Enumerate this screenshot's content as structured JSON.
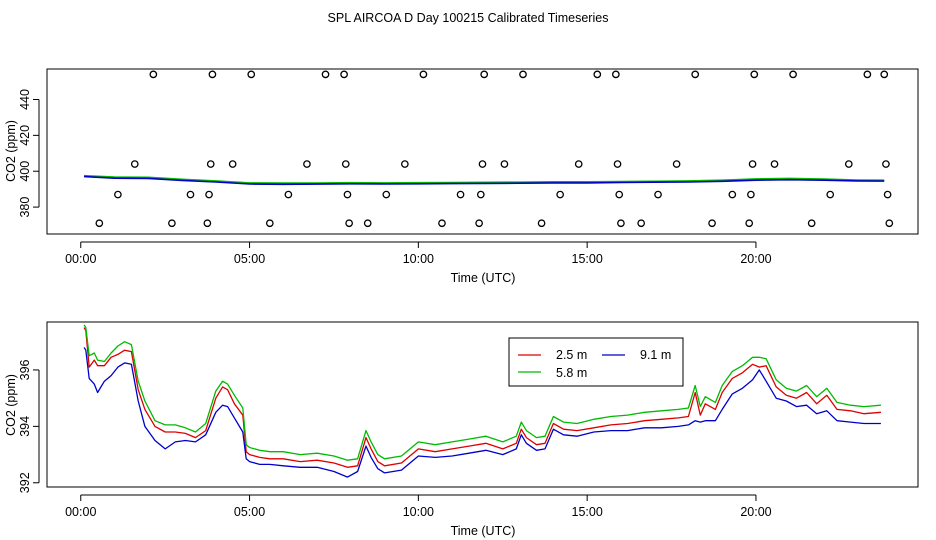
{
  "title": "SPL AIRCOA D  Day 100215  Calibrated Timeseries",
  "colors": {
    "red": "#dd0000",
    "green": "#00bb00",
    "blue": "#0000cc",
    "points": "#000000"
  },
  "chart_data": [
    {
      "type": "scatter",
      "xlabel": "Time (UTC)",
      "ylabel": "CO2 (ppm)",
      "xlim": [
        -1.0,
        24.8
      ],
      "ylim": [
        365,
        457
      ],
      "x_ticks": [
        0,
        5,
        10,
        15,
        20
      ],
      "x_tick_labels": [
        "00:00",
        "05:00",
        "10:00",
        "15:00",
        "20:00"
      ],
      "y_ticks": [
        380,
        400,
        420,
        440
      ],
      "y_tick_labels": [
        "380",
        "400",
        "420",
        "440"
      ],
      "points": [
        {
          "x": 0.55,
          "y": 371
        },
        {
          "x": 1.1,
          "y": 387
        },
        {
          "x": 1.6,
          "y": 404
        },
        {
          "x": 2.15,
          "y": 454
        },
        {
          "x": 2.7,
          "y": 371
        },
        {
          "x": 3.25,
          "y": 387
        },
        {
          "x": 3.75,
          "y": 371
        },
        {
          "x": 3.8,
          "y": 387
        },
        {
          "x": 3.85,
          "y": 404
        },
        {
          "x": 3.9,
          "y": 454
        },
        {
          "x": 4.5,
          "y": 404
        },
        {
          "x": 5.05,
          "y": 454
        },
        {
          "x": 5.6,
          "y": 371
        },
        {
          "x": 6.15,
          "y": 387
        },
        {
          "x": 6.7,
          "y": 404
        },
        {
          "x": 7.25,
          "y": 454
        },
        {
          "x": 7.8,
          "y": 454
        },
        {
          "x": 7.85,
          "y": 404
        },
        {
          "x": 7.9,
          "y": 387
        },
        {
          "x": 7.95,
          "y": 371
        },
        {
          "x": 8.5,
          "y": 371
        },
        {
          "x": 9.05,
          "y": 387
        },
        {
          "x": 9.6,
          "y": 404
        },
        {
          "x": 10.15,
          "y": 454
        },
        {
          "x": 10.7,
          "y": 371
        },
        {
          "x": 11.25,
          "y": 387
        },
        {
          "x": 11.8,
          "y": 371
        },
        {
          "x": 11.85,
          "y": 387
        },
        {
          "x": 11.9,
          "y": 404
        },
        {
          "x": 11.95,
          "y": 454
        },
        {
          "x": 12.55,
          "y": 404
        },
        {
          "x": 13.1,
          "y": 454
        },
        {
          "x": 13.65,
          "y": 371
        },
        {
          "x": 14.2,
          "y": 387
        },
        {
          "x": 14.75,
          "y": 404
        },
        {
          "x": 15.3,
          "y": 454
        },
        {
          "x": 15.85,
          "y": 454
        },
        {
          "x": 15.9,
          "y": 404
        },
        {
          "x": 15.95,
          "y": 387
        },
        {
          "x": 16.0,
          "y": 371
        },
        {
          "x": 16.6,
          "y": 371
        },
        {
          "x": 17.1,
          "y": 387
        },
        {
          "x": 17.65,
          "y": 404
        },
        {
          "x": 18.2,
          "y": 454
        },
        {
          "x": 18.7,
          "y": 371
        },
        {
          "x": 19.3,
          "y": 387
        },
        {
          "x": 19.8,
          "y": 371
        },
        {
          "x": 19.85,
          "y": 387
        },
        {
          "x": 19.9,
          "y": 404
        },
        {
          "x": 19.95,
          "y": 454
        },
        {
          "x": 20.55,
          "y": 404
        },
        {
          "x": 21.1,
          "y": 454
        },
        {
          "x": 21.65,
          "y": 371
        },
        {
          "x": 22.2,
          "y": 387
        },
        {
          "x": 22.75,
          "y": 404
        },
        {
          "x": 23.3,
          "y": 454
        },
        {
          "x": 23.8,
          "y": 454
        },
        {
          "x": 23.85,
          "y": 404
        },
        {
          "x": 23.9,
          "y": 387
        },
        {
          "x": 23.95,
          "y": 371
        }
      ],
      "series": [
        {
          "color": "red",
          "x": [
            0.1,
            1,
            2,
            3,
            4,
            5,
            6,
            7,
            8,
            9,
            10,
            11,
            12,
            13,
            14,
            15,
            16,
            17,
            18,
            19,
            20,
            21,
            22,
            23,
            23.8
          ],
          "values": [
            397.3,
            396.4,
            396.3,
            395.2,
            394.3,
            393.3,
            393.1,
            393.2,
            393.4,
            393.2,
            393.4,
            393.4,
            393.6,
            393.7,
            393.8,
            393.8,
            394.0,
            394.2,
            394.3,
            394.7,
            395.3,
            395.6,
            395.3,
            394.9,
            394.8
          ]
        },
        {
          "color": "green",
          "x": [
            0.1,
            1,
            2,
            3,
            4,
            5,
            6,
            7,
            8,
            9,
            10,
            11,
            12,
            13,
            14,
            15,
            16,
            17,
            18,
            19,
            20,
            21,
            22,
            23,
            23.8
          ],
          "values": [
            397.5,
            396.7,
            396.6,
            395.5,
            394.6,
            393.5,
            393.4,
            393.4,
            393.6,
            393.5,
            393.6,
            393.7,
            393.8,
            393.9,
            394.1,
            394.1,
            394.3,
            394.4,
            394.6,
            395.0,
            395.7,
            396.0,
            395.6,
            395.1,
            395.0
          ]
        },
        {
          "color": "blue",
          "x": [
            0.1,
            1,
            2,
            3,
            4,
            5,
            6,
            7,
            8,
            9,
            10,
            11,
            12,
            13,
            14,
            15,
            16,
            17,
            18,
            19,
            20,
            21,
            22,
            23,
            23.8
          ],
          "values": [
            397.0,
            396.1,
            396.0,
            394.9,
            394.0,
            392.9,
            392.7,
            392.8,
            393.0,
            392.9,
            393.0,
            393.1,
            393.2,
            393.3,
            393.5,
            393.5,
            393.7,
            393.9,
            394.0,
            394.4,
            395.0,
            395.3,
            395.0,
            394.6,
            394.5
          ]
        }
      ]
    },
    {
      "type": "line",
      "xlabel": "Time (UTC)",
      "ylabel": "CO2 (ppm)",
      "xlim": [
        -1.0,
        24.8
      ],
      "ylim": [
        391.85,
        397.7
      ],
      "x_ticks": [
        0,
        5,
        10,
        15,
        20
      ],
      "x_tick_labels": [
        "00:00",
        "05:00",
        "10:00",
        "15:00",
        "20:00"
      ],
      "y_ticks": [
        392,
        394,
        396
      ],
      "y_tick_labels": [
        "392",
        "394",
        "396"
      ],
      "legend_position": "top-right",
      "series": [
        {
          "name": "2.5 m",
          "color": "red",
          "x": [
            0.1,
            0.15,
            0.25,
            0.4,
            0.5,
            0.7,
            0.9,
            1.1,
            1.3,
            1.5,
            1.7,
            1.9,
            2.2,
            2.5,
            2.8,
            3.1,
            3.4,
            3.7,
            4.0,
            4.2,
            4.35,
            4.55,
            4.8,
            4.9,
            5.0,
            5.3,
            5.6,
            6.0,
            6.5,
            7.0,
            7.5,
            7.9,
            8.2,
            8.45,
            8.6,
            8.8,
            9.0,
            9.5,
            10.0,
            10.5,
            11.0,
            11.5,
            12.0,
            12.5,
            12.9,
            13.05,
            13.2,
            13.5,
            13.75,
            14.0,
            14.3,
            14.7,
            15.2,
            15.7,
            16.2,
            16.7,
            17.2,
            17.7,
            18.0,
            18.2,
            18.35,
            18.5,
            18.8,
            19.0,
            19.3,
            19.6,
            19.9,
            20.1,
            20.3,
            20.6,
            20.9,
            21.2,
            21.5,
            21.8,
            22.1,
            22.4,
            22.8,
            23.2,
            23.7
          ],
          "values": [
            397.5,
            397.4,
            396.1,
            396.35,
            396.15,
            396.15,
            396.45,
            396.55,
            396.7,
            396.65,
            395.3,
            394.6,
            394.0,
            393.8,
            393.8,
            393.75,
            393.6,
            393.85,
            395.0,
            395.4,
            395.3,
            394.8,
            394.4,
            393.1,
            393.0,
            392.9,
            392.85,
            392.85,
            392.75,
            392.8,
            392.7,
            392.55,
            392.6,
            393.6,
            393.2,
            392.75,
            392.6,
            392.7,
            393.2,
            393.1,
            393.2,
            393.3,
            393.4,
            393.2,
            393.4,
            393.9,
            393.6,
            393.35,
            393.4,
            394.1,
            393.9,
            393.85,
            393.95,
            394.05,
            394.1,
            394.2,
            394.25,
            394.3,
            394.35,
            395.2,
            394.4,
            394.8,
            394.6,
            395.2,
            395.7,
            395.9,
            396.2,
            396.1,
            396.15,
            395.4,
            395.1,
            395.0,
            395.2,
            394.8,
            395.1,
            394.6,
            394.55,
            394.45,
            394.5
          ]
        },
        {
          "name": "5.8 m",
          "color": "green",
          "x": [
            0.1,
            0.15,
            0.25,
            0.4,
            0.5,
            0.7,
            0.9,
            1.1,
            1.3,
            1.5,
            1.7,
            1.9,
            2.2,
            2.5,
            2.8,
            3.1,
            3.4,
            3.7,
            4.0,
            4.2,
            4.35,
            4.55,
            4.8,
            4.9,
            5.0,
            5.3,
            5.6,
            6.0,
            6.5,
            7.0,
            7.5,
            7.9,
            8.2,
            8.45,
            8.6,
            8.8,
            9.0,
            9.5,
            10.0,
            10.5,
            11.0,
            11.5,
            12.0,
            12.5,
            12.9,
            13.05,
            13.2,
            13.5,
            13.75,
            14.0,
            14.3,
            14.7,
            15.2,
            15.7,
            16.2,
            16.7,
            17.2,
            17.7,
            18.0,
            18.2,
            18.35,
            18.5,
            18.8,
            19.0,
            19.3,
            19.6,
            19.9,
            20.1,
            20.3,
            20.6,
            20.9,
            21.2,
            21.5,
            21.8,
            22.1,
            22.4,
            22.8,
            23.2,
            23.7
          ],
          "values": [
            397.6,
            397.5,
            396.5,
            396.6,
            396.35,
            396.3,
            396.6,
            396.85,
            397.0,
            396.9,
            395.6,
            394.9,
            394.2,
            394.05,
            394.05,
            393.95,
            393.8,
            394.1,
            395.25,
            395.6,
            395.5,
            395.1,
            394.65,
            393.35,
            393.25,
            393.15,
            393.1,
            393.1,
            393.0,
            393.05,
            392.95,
            392.8,
            392.85,
            393.85,
            393.45,
            393.0,
            392.85,
            392.95,
            393.45,
            393.35,
            393.45,
            393.55,
            393.65,
            393.45,
            393.65,
            394.15,
            393.85,
            393.6,
            393.65,
            394.35,
            394.15,
            394.1,
            394.25,
            394.35,
            394.4,
            394.5,
            394.55,
            394.6,
            394.65,
            395.45,
            394.7,
            395.05,
            394.85,
            395.45,
            395.95,
            396.15,
            396.45,
            396.45,
            396.4,
            395.65,
            395.35,
            395.25,
            395.45,
            395.05,
            395.35,
            394.85,
            394.75,
            394.7,
            394.75
          ]
        },
        {
          "name": "9.1 m",
          "color": "blue",
          "x": [
            0.1,
            0.15,
            0.25,
            0.4,
            0.5,
            0.7,
            0.9,
            1.1,
            1.3,
            1.5,
            1.7,
            1.9,
            2.2,
            2.5,
            2.8,
            3.1,
            3.4,
            3.7,
            4.0,
            4.2,
            4.35,
            4.55,
            4.8,
            4.9,
            5.0,
            5.3,
            5.6,
            6.0,
            6.5,
            7.0,
            7.5,
            7.9,
            8.2,
            8.45,
            8.6,
            8.8,
            9.0,
            9.5,
            10.0,
            10.5,
            11.0,
            11.5,
            12.0,
            12.5,
            12.9,
            13.05,
            13.2,
            13.5,
            13.75,
            14.0,
            14.3,
            14.7,
            15.2,
            15.7,
            16.2,
            16.7,
            17.2,
            17.7,
            18.0,
            18.2,
            18.35,
            18.5,
            18.8,
            19.0,
            19.3,
            19.6,
            19.9,
            20.1,
            20.3,
            20.6,
            20.9,
            21.2,
            21.5,
            21.8,
            22.1,
            22.4,
            22.8,
            23.2,
            23.7
          ],
          "values": [
            396.8,
            396.7,
            395.7,
            395.5,
            395.2,
            395.6,
            395.8,
            396.1,
            396.25,
            396.2,
            394.9,
            394.0,
            393.5,
            393.2,
            393.45,
            393.5,
            393.45,
            393.7,
            394.5,
            394.75,
            394.7,
            394.3,
            393.8,
            392.85,
            392.75,
            392.65,
            392.65,
            392.6,
            392.55,
            392.55,
            392.4,
            392.2,
            392.4,
            393.3,
            392.9,
            392.5,
            392.35,
            392.45,
            392.95,
            392.9,
            392.95,
            393.05,
            393.15,
            393.0,
            393.2,
            393.7,
            393.4,
            393.15,
            393.2,
            393.9,
            393.7,
            393.65,
            393.8,
            393.85,
            393.85,
            393.95,
            393.95,
            394.0,
            394.05,
            394.2,
            394.15,
            394.2,
            394.2,
            394.6,
            395.15,
            395.35,
            395.65,
            396.0,
            395.6,
            395.0,
            394.9,
            394.7,
            394.75,
            394.45,
            394.55,
            394.2,
            394.15,
            394.1,
            394.1
          ]
        }
      ]
    }
  ]
}
